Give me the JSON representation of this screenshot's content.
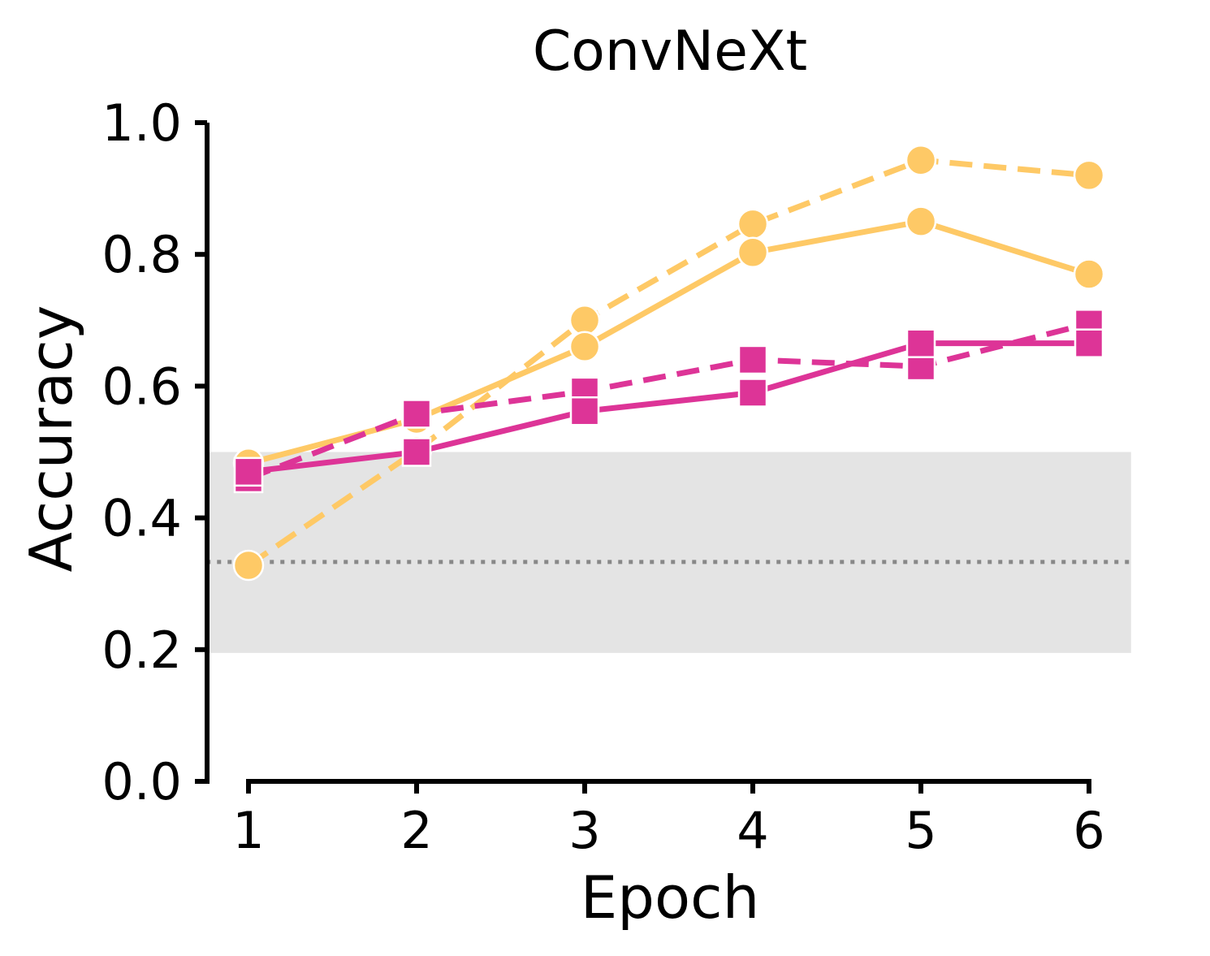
{
  "chart_data": {
    "type": "line",
    "title": "ConvNeXt",
    "xlabel": "Epoch",
    "ylabel": "Accuracy",
    "x": [
      1,
      2,
      3,
      4,
      5,
      6
    ],
    "x_ticks": [
      "1",
      "2",
      "3",
      "4",
      "5",
      "6"
    ],
    "y_ticks": [
      "0.0",
      "0.2",
      "0.4",
      "0.6",
      "0.8",
      "1.0"
    ],
    "ylim": [
      0,
      1
    ],
    "xlim": [
      0.75,
      6.25
    ],
    "grid": false,
    "shaded_band": {
      "y_min": 0.195,
      "y_max": 0.5,
      "color": "#e4e4e4"
    },
    "reference_line": {
      "y": 0.333,
      "style": "dotted",
      "color": "#888888"
    },
    "series": [
      {
        "marker": "circle",
        "line": "dashed",
        "color": "#fec966",
        "values": [
          0.328,
          0.502,
          0.7,
          0.846,
          0.943,
          0.92
        ]
      },
      {
        "marker": "circle",
        "line": "solid",
        "color": "#fec966",
        "values": [
          0.483,
          0.55,
          0.66,
          0.803,
          0.85,
          0.77
        ]
      },
      {
        "marker": "square",
        "line": "dashed",
        "color": "#dd3497",
        "values": [
          0.46,
          0.558,
          0.592,
          0.64,
          0.63,
          0.695
        ]
      },
      {
        "marker": "square",
        "line": "solid",
        "color": "#dd3497",
        "values": [
          0.47,
          0.5,
          0.562,
          0.59,
          0.665,
          0.665
        ]
      }
    ]
  }
}
